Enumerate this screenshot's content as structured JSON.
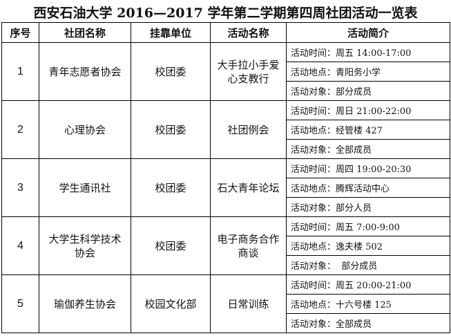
{
  "title": "西安石油大学 2016—2017 学年第二学期第四周社团活动一览表",
  "headers": [
    "序号",
    "社团名称",
    "挂靠单位",
    "活动名称",
    "活动简介"
  ],
  "rows": [
    {
      "num": "1",
      "club": "青年志愿者协会",
      "unit": "校团委",
      "activity": "大手拉小手爱心支教行",
      "info": [
        "活动时间：周五 14:00-17:00",
        "活动地点：青阳务小学",
        "活动对象：部分成员"
      ]
    },
    {
      "num": "2",
      "club": "心理协会",
      "unit": "校团委",
      "activity": "社团例会",
      "info": [
        "活动时间：周日 21:00-22:00",
        "活动地点：经管楼 427",
        "活动对象：全部成员"
      ]
    },
    {
      "num": "3",
      "club": "学生通讯社",
      "unit": "校团委",
      "activity": "石大青年论坛",
      "info": [
        "活动时间：周四 19:00-20:30",
        "活动地点：腾辉活动中心",
        "活动对象：部分人员"
      ]
    },
    {
      "num": "4",
      "club": "大学生科学技术协会",
      "unit": "校团委",
      "activity": "电子商务合作商谈",
      "info": [
        "活动时间：周五 7:00-9:00",
        "活动地点：逸夫楼 502",
        "活动对象：  部分成员"
      ]
    },
    {
      "num": "5",
      "club": "瑜伽养生协会",
      "unit": "校园文化部",
      "activity": "日常训练",
      "info": [
        "活动时间：周五 20:00-21:00",
        "活动地点：十六号楼 125",
        "活动对象：全部成员"
      ]
    }
  ]
}
